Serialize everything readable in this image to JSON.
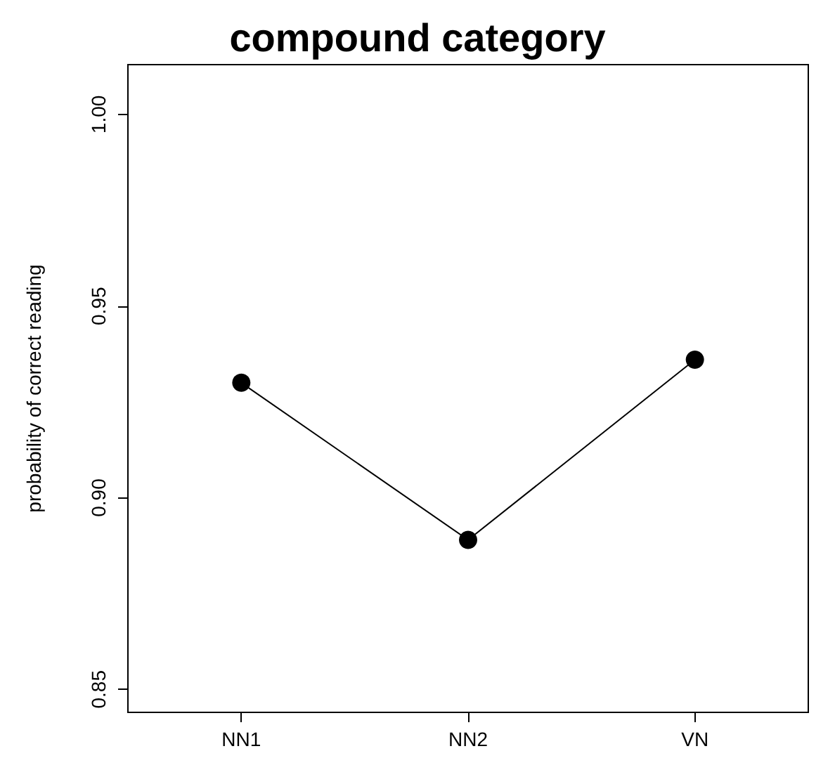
{
  "chart_data": {
    "type": "line",
    "title": "compound category",
    "ylabel": "probability of correct reading",
    "categories": [
      "NN1",
      "NN2",
      "VN"
    ],
    "series": [
      {
        "color": "#000000",
        "values": [
          0.93,
          0.889,
          0.936
        ]
      }
    ],
    "ylim": [
      0.844,
      1.013
    ],
    "yticks": [
      0.85,
      {
        "value": 0.9,
        "label": "0.90"
      },
      0.95,
      {
        "value": 1,
        "label": "1.00"
      }
    ],
    "grid": false,
    "marker": "circle",
    "line_style": "solid"
  }
}
